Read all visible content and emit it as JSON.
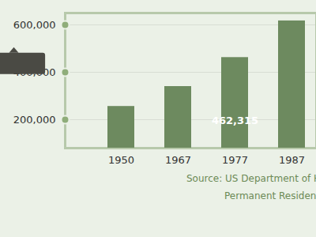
{
  "chart_data": {
    "type": "bar",
    "categories": [
      "1950",
      "1967",
      "1977",
      "1987"
    ],
    "values": [
      256000,
      340000,
      462315,
      617000
    ],
    "color": "#6d8a5f",
    "ylim": [
      80000,
      650000
    ],
    "yticks": [
      {
        "value": 200000,
        "label": "200,000"
      },
      {
        "value": 400000,
        "label": "400,000"
      },
      {
        "value": 600000,
        "label": "600,000"
      }
    ],
    "grid": true,
    "annotations": [
      {
        "category": "1977",
        "text": "462,315"
      }
    ],
    "caption": [
      "Source: US Department of H",
      "Permanent Resident"
    ]
  }
}
